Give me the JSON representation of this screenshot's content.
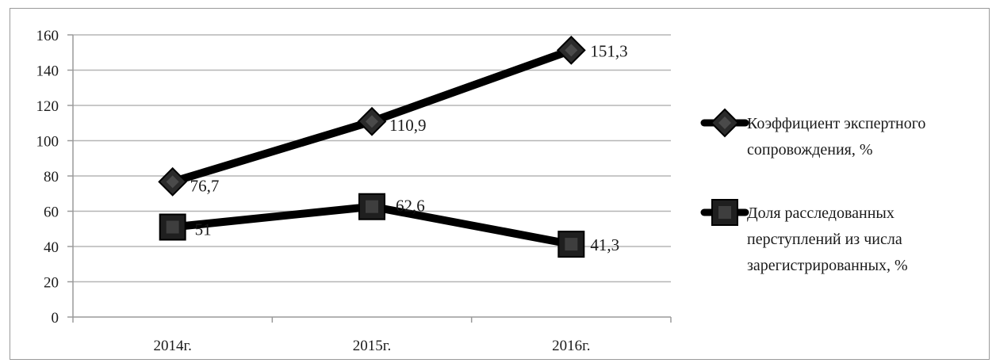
{
  "chart_data": {
    "type": "line",
    "categories": [
      "2014г.",
      "2015г.",
      "2016г."
    ],
    "series": [
      {
        "name": "Коэффициент экспертного сопровождения, %",
        "legend_lines": [
          "Коэффициент экспертного",
          "сопровождения, %"
        ],
        "marker": "diamond",
        "values": [
          76.7,
          110.9,
          151.3
        ],
        "labels": [
          "76,7",
          "110,9",
          "151,3"
        ]
      },
      {
        "name": "Доля расследованных преступлений из числа зарегистрированных, %",
        "legend_lines": [
          "Доля расследованных",
          "перступлений из числа",
          "зарегистрированных, %"
        ],
        "marker": "square",
        "values": [
          51,
          62.6,
          41.3
        ],
        "labels": [
          "51",
          "62,6",
          "41,3"
        ]
      }
    ],
    "ylim": [
      0,
      160
    ],
    "yticks": [
      0,
      20,
      40,
      60,
      80,
      100,
      120,
      140,
      160
    ],
    "grid": true,
    "legend_position": "right",
    "colors": {
      "line": "#000000",
      "grid": "#b5b5b5",
      "axis": "#9a9a9a"
    }
  }
}
